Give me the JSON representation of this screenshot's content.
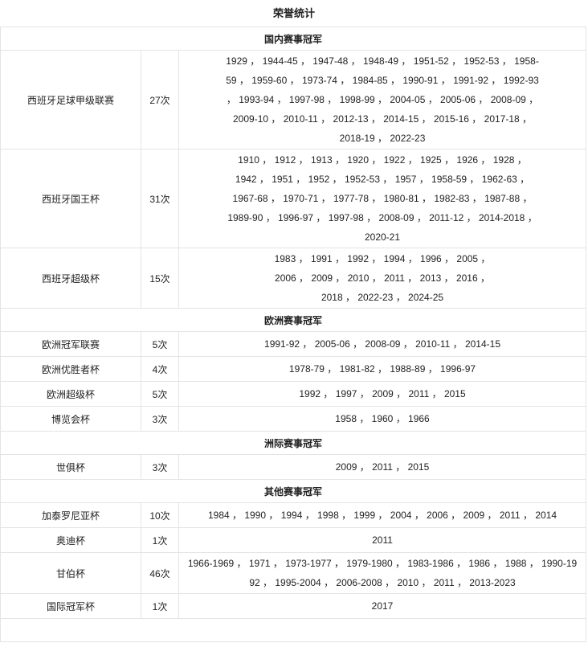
{
  "title": "荣誉统计",
  "sections": [
    {
      "heading": "国内赛事冠军",
      "rows": [
        {
          "name": "西班牙足球甲级联赛",
          "count": "27次",
          "years": "1929 ， 1944-45 ， 1947-48 ， 1948-49 ， 1951-52 ， 1952-53 ， 1958-59 ， 1959-60 ， 1973-74 ， 1984-85 ， 1990-91 ， 1991-92 ， 1992-93 ， 1993-94 ， 1997-98 ， 1998-99 ， 2004-05 ， 2005-06 ， 2008-09 ， 2009-10 ， 2010-11 ， 2012-13 ， 2014-15 ， 2015-16 ， 2017-18 ， 2018-19 ， 2022-23"
        },
        {
          "name": "西班牙国王杯",
          "count": "31次",
          "years": "1910 ， 1912 ， 1913 ， 1920 ， 1922 ， 1925 ， 1926 ， 1928 ， 1942 ， 1951 ， 1952 ， 1952-53 ， 1957 ， 1958-59 ， 1962-63 ， 1967-68 ， 1970-71 ， 1977-78 ， 1980-81 ， 1982-83 ， 1987-88 ， 1989-90 ， 1996-97 ， 1997-98 ， 2008-09 ， 2011-12 ， 2014-2018 ， 2020-21"
        },
        {
          "name": "西班牙超级杯",
          "count": "15次",
          "years": "1983 ， 1991 ， 1992 ， 1994 ， 1996 ， 2005 ， 2006 ， 2009 ， 2010 ， 2011 ， 2013 ， 2016 ， 2018 ， 2022-23 ， 2024-25"
        }
      ]
    },
    {
      "heading": "欧洲赛事冠军",
      "rows": [
        {
          "name": "欧洲冠军联赛",
          "count": "5次",
          "years": "1991-92 ， 2005-06 ， 2008-09 ， 2010-11 ， 2014-15"
        },
        {
          "name": "欧洲优胜者杯",
          "count": "4次",
          "years": "1978-79 ， 1981-82 ， 1988-89 ， 1996-97"
        },
        {
          "name": "欧洲超级杯",
          "count": "5次",
          "years": "1992 ， 1997 ， 2009 ， 2011 ， 2015"
        },
        {
          "name": "博览会杯",
          "count": "3次",
          "years": "1958 ， 1960 ， 1966"
        }
      ]
    },
    {
      "heading": "洲际赛事冠军",
      "rows": [
        {
          "name": "世俱杯",
          "count": "3次",
          "years": "2009 ， 2011 ， 2015"
        }
      ]
    },
    {
      "heading": "其他赛事冠军",
      "rows": [
        {
          "name": "加泰罗尼亚杯",
          "count": "10次",
          "years": "1984 ， 1990 ， 1994 ， 1998 ， 1999 ， 2004 ， 2006 ， 2009 ， 2011 ， 2014"
        },
        {
          "name": "奥迪杯",
          "count": "1次",
          "years": "2011"
        },
        {
          "name": "甘伯杯",
          "count": "46次",
          "years": "1966-1969 ， 1971 ， 1973-1977 ， 1979-1980 ， 1983-1986 ， 1986 ， 1988 ， 1990-1992 ， 1995-2004 ， 2006-2008 ， 2010 ， 2011 ， 2013-2023"
        },
        {
          "name": "国际冠军杯",
          "count": "1次",
          "years": "2017"
        }
      ]
    }
  ]
}
